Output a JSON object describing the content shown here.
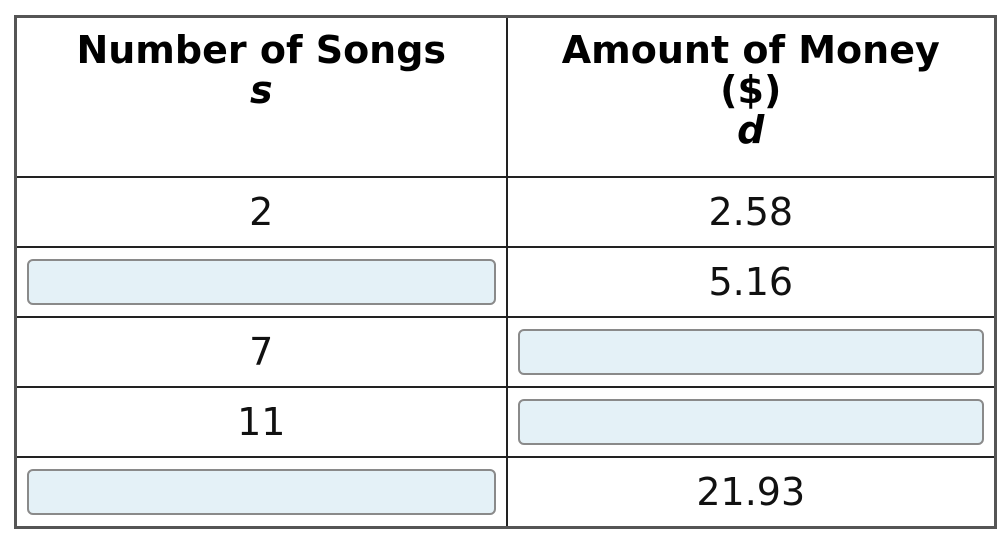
{
  "table": {
    "columns": [
      {
        "title": "Number of Songs",
        "variable": "s"
      },
      {
        "title": "Amount of Money ($)",
        "variable": "d"
      }
    ],
    "rows": [
      [
        "2",
        "2.58"
      ],
      [
        null,
        "5.16"
      ],
      [
        "7",
        null
      ],
      [
        "11",
        null
      ],
      [
        null,
        "21.93"
      ]
    ]
  }
}
